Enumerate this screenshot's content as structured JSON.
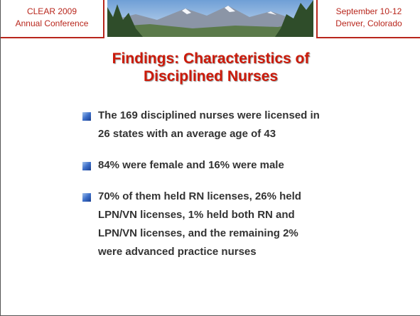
{
  "header": {
    "left": [
      "CLEAR 2009",
      "Annual Conference"
    ],
    "right": [
      "September 10-12",
      "Denver, Colorado"
    ]
  },
  "title": [
    "Findings: Characteristics of",
    "Disciplined Nurses"
  ],
  "bullets": [
    [
      "The 169 disciplined nurses were licensed in",
      "26 states with an average age of 43"
    ],
    [
      "84% were female and 16% were male"
    ],
    [
      "70% of them held RN licenses, 26% held",
      "LPN/VN licenses, 1% held both RN and",
      "LPN/VN licenses, and the remaining 2%",
      "were advanced practice nurses"
    ]
  ]
}
